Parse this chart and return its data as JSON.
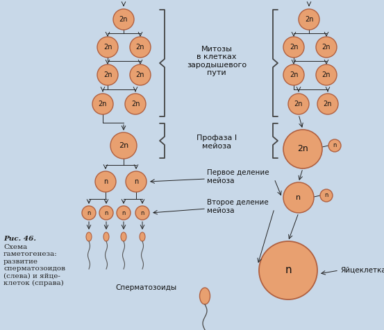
{
  "bg_color": "#c8d8e8",
  "cell_color": "#e8a070",
  "cell_edge": "#b06040",
  "text_color": "#111111",
  "arrow_color": "#222222",
  "bracket_color": "#444444",
  "label_mitoz": "Митозы\nв клетках\nзародышевого\nпути",
  "label_profaza": "Профаза I\nмейоза",
  "label_pervoe": "Первое деление\nмейоза",
  "label_vtoroe": "Второе деление\nмейоза",
  "label_sperm": "Сперматозоиды",
  "label_yajtse": "Яйцеклетка",
  "caption_italic": "Рис. 46.",
  "caption_normal": " Схема\nгаметогенеза:\nразвитие\nсперматозоидов\n(слева) и яйце-\nклеток (справа)"
}
